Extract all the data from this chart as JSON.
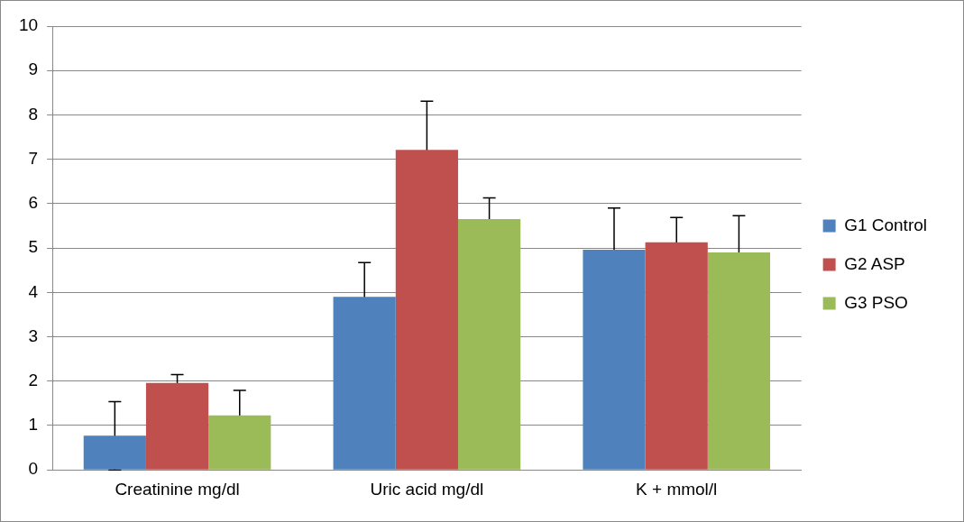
{
  "chart_data": {
    "type": "bar",
    "categories": [
      "Creatinine mg/dl",
      "Uric acid mg/dl",
      "K + mmol/l"
    ],
    "series": [
      {
        "name": "G1 Control",
        "color": "#4f81bd",
        "values": [
          0.77,
          3.9,
          4.96
        ],
        "errors": [
          0.77,
          0.77,
          0.94
        ]
      },
      {
        "name": "G2 ASP",
        "color": "#c0504d",
        "values": [
          1.96,
          7.21,
          5.13
        ],
        "errors": [
          0.19,
          1.1,
          0.56
        ]
      },
      {
        "name": "G3 PSO",
        "color": "#9bbb59",
        "values": [
          1.23,
          5.65,
          4.9
        ],
        "errors": [
          0.56,
          0.48,
          0.83
        ]
      }
    ],
    "ylim": [
      0,
      10
    ],
    "yticks": [
      0,
      1,
      2,
      3,
      4,
      5,
      6,
      7,
      8,
      9,
      10
    ],
    "grid": "y",
    "legend": "right"
  }
}
